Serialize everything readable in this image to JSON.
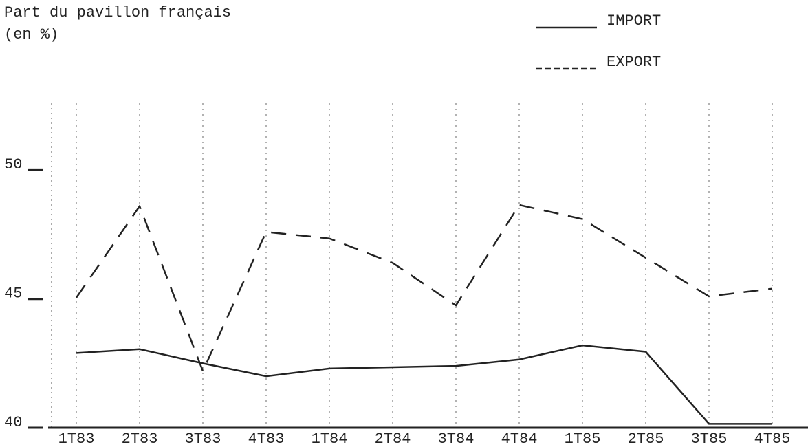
{
  "chart_data": {
    "type": "line",
    "title": "Part du pavillon français",
    "subtitle": "(en %)",
    "categories": [
      "1T83",
      "2T83",
      "3T83",
      "4T83",
      "1T84",
      "2T84",
      "3T84",
      "4T84",
      "1T85",
      "2T85",
      "3T85",
      "4T85"
    ],
    "series": [
      {
        "name": "IMPORT",
        "color": "#222222",
        "style": "solid",
        "values": [
          42.9,
          43.05,
          42.5,
          42.0,
          42.3,
          42.35,
          42.4,
          42.65,
          43.2,
          42.95,
          40.15,
          40.15
        ]
      },
      {
        "name": "EXPORT",
        "color": "#222222",
        "style": "dashed",
        "values": [
          45.05,
          48.6,
          42.2,
          47.6,
          47.35,
          46.4,
          44.75,
          48.65,
          48.1,
          46.6,
          45.1,
          45.4
        ]
      }
    ],
    "ylim": [
      40,
      52.6
    ],
    "yticks": [
      40,
      45,
      50
    ],
    "grid": true
  }
}
